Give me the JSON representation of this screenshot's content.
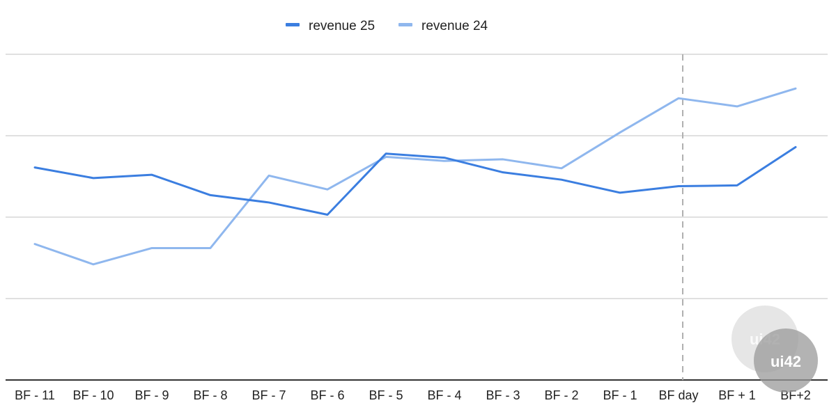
{
  "chart_data": {
    "type": "line",
    "categories": [
      "BF - 11",
      "BF - 10",
      "BF - 9",
      "BF - 8",
      "BF - 7",
      "BF - 6",
      "BF - 5",
      "BF - 4",
      "BF - 3",
      "BF - 2",
      "BF - 1",
      "BF day",
      "BF + 1",
      "BF+2"
    ],
    "series": [
      {
        "name": "revenue 25",
        "color": "#3b7ee0",
        "values": [
          2.61,
          2.48,
          2.52,
          2.27,
          2.18,
          2.03,
          2.78,
          2.73,
          2.55,
          2.46,
          2.3,
          2.38,
          2.39,
          2.86
        ]
      },
      {
        "name": "revenue 24",
        "color": "#8fb7ee",
        "values": [
          1.67,
          1.42,
          1.62,
          1.62,
          2.51,
          2.34,
          2.74,
          2.69,
          2.71,
          2.6,
          3.04,
          3.46,
          3.36,
          3.58
        ]
      }
    ],
    "ylim": [
      0,
      4
    ],
    "grid": true,
    "yticks_visible": false,
    "legend_position": "top",
    "highlight_category": "BF day",
    "highlight_style": "dashed vertical line"
  },
  "watermark": {
    "text": "ui42",
    "icon": "ui42-logo-icon"
  }
}
